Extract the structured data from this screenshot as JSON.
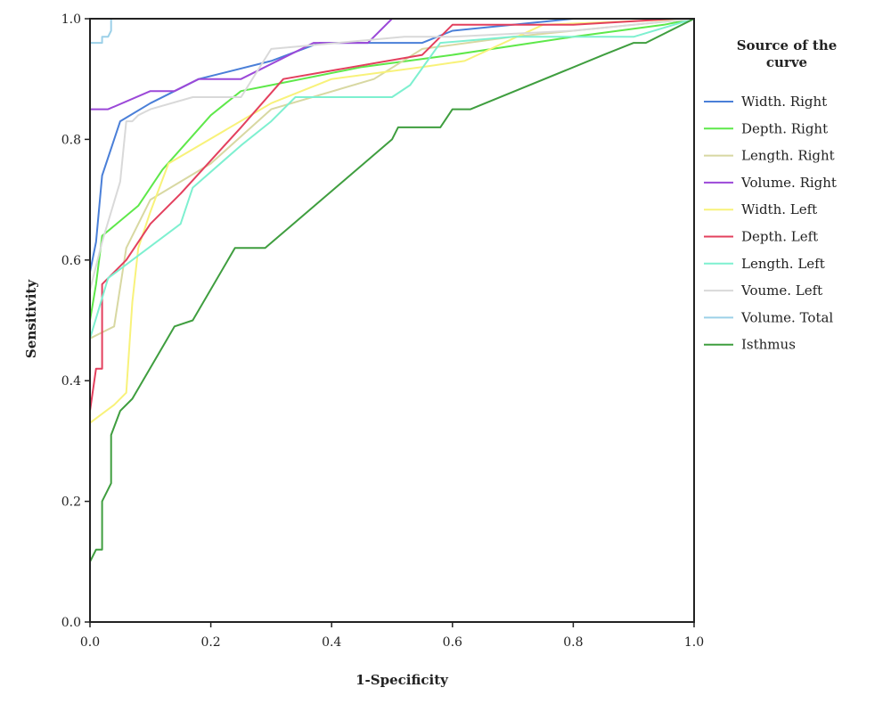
{
  "chart_data": {
    "type": "line",
    "title": "",
    "xlabel": "1-Specificity",
    "ylabel": "Sensitivity",
    "xlim": [
      0,
      1
    ],
    "ylim": [
      0,
      1
    ],
    "x_ticks": [
      "0.0",
      "0.2",
      "0.4",
      "0.6",
      "0.8",
      "1.0"
    ],
    "y_ticks": [
      "0.0",
      "0.2",
      "0.4",
      "0.6",
      "0.8",
      "1.0"
    ],
    "grid": false,
    "legend_title_lines": [
      "Source of the",
      "curve"
    ],
    "legend_position": "right",
    "series": [
      {
        "name": "Width. Right",
        "color": "#4a7fd8",
        "x": [
          0,
          0,
          0.01,
          0.02,
          0.05,
          0.1,
          0.18,
          0.3,
          0.38,
          0.55,
          0.6,
          0.8,
          1
        ],
        "y": [
          0,
          0.58,
          0.63,
          0.74,
          0.83,
          0.86,
          0.9,
          0.93,
          0.96,
          0.96,
          0.98,
          1.0,
          1
        ]
      },
      {
        "name": "Depth. Right",
        "color": "#5ee84a",
        "x": [
          0,
          0,
          0.01,
          0.02,
          0.08,
          0.12,
          0.2,
          0.25,
          0.3,
          0.45,
          0.6,
          0.8,
          0.95,
          1
        ],
        "y": [
          0,
          0.5,
          0.56,
          0.64,
          0.69,
          0.75,
          0.84,
          0.88,
          0.89,
          0.92,
          0.94,
          0.97,
          0.99,
          1
        ]
      },
      {
        "name": "Length. Right",
        "color": "#d8d8a2",
        "x": [
          0,
          0,
          0.02,
          0.04,
          0.06,
          0.1,
          0.2,
          0.3,
          0.47,
          0.55,
          0.7,
          0.8,
          1
        ],
        "y": [
          0,
          0.47,
          0.48,
          0.49,
          0.62,
          0.7,
          0.76,
          0.85,
          0.9,
          0.95,
          0.97,
          0.98,
          1
        ]
      },
      {
        "name": "Volume. Right",
        "color": "#9b48d8",
        "x": [
          0,
          0,
          0.03,
          0.1,
          0.14,
          0.18,
          0.25,
          0.37,
          0.46,
          0.5,
          0.52,
          0.7,
          1
        ],
        "y": [
          0,
          0.85,
          0.85,
          0.88,
          0.88,
          0.9,
          0.9,
          0.96,
          0.96,
          1.0,
          1.0,
          1.0,
          1
        ]
      },
      {
        "name": "Width. Left",
        "color": "#f8f27a",
        "x": [
          0,
          0,
          0.04,
          0.06,
          0.07,
          0.08,
          0.1,
          0.13,
          0.3,
          0.4,
          0.55,
          0.62,
          0.75,
          1
        ],
        "y": [
          0,
          0.33,
          0.36,
          0.38,
          0.53,
          0.62,
          0.68,
          0.76,
          0.86,
          0.9,
          0.92,
          0.93,
          0.99,
          1
        ]
      },
      {
        "name": "Depth. Left",
        "color": "#e3405e",
        "x": [
          0,
          0,
          0.01,
          0.02,
          0.02,
          0.06,
          0.1,
          0.15,
          0.25,
          0.32,
          0.55,
          0.6,
          0.8,
          0.97,
          1
        ],
        "y": [
          0,
          0.35,
          0.42,
          0.42,
          0.56,
          0.6,
          0.66,
          0.71,
          0.82,
          0.9,
          0.94,
          0.99,
          0.99,
          1.0,
          1
        ]
      },
      {
        "name": "Length. Left",
        "color": "#7ef0d0",
        "x": [
          0,
          0,
          0.03,
          0.15,
          0.17,
          0.25,
          0.3,
          0.34,
          0.5,
          0.53,
          0.58,
          0.7,
          0.9,
          1
        ],
        "y": [
          0,
          0.47,
          0.57,
          0.66,
          0.72,
          0.79,
          0.83,
          0.87,
          0.87,
          0.89,
          0.96,
          0.97,
          0.97,
          1
        ]
      },
      {
        "name": "Voume. Left",
        "color": "#d9d9d9",
        "x": [
          0,
          0,
          0.02,
          0.05,
          0.06,
          0.07,
          0.08,
          0.1,
          0.17,
          0.25,
          0.3,
          0.52,
          0.6,
          0.8,
          1
        ],
        "y": [
          0,
          0.55,
          0.63,
          0.73,
          0.83,
          0.83,
          0.84,
          0.85,
          0.87,
          0.87,
          0.95,
          0.97,
          0.97,
          0.98,
          1
        ]
      },
      {
        "name": "Volume. Total",
        "color": "#9cd0e8",
        "x": [
          0,
          0,
          0.02,
          0.02,
          0.03,
          0.035,
          0.035,
          0.1,
          0.5,
          1
        ],
        "y": [
          0,
          0.96,
          0.96,
          0.97,
          0.97,
          0.98,
          1.0,
          1.0,
          1.0,
          1
        ]
      },
      {
        "name": "Isthmus",
        "color": "#3f9e3f",
        "x": [
          0,
          0,
          0.01,
          0.02,
          0.02,
          0.035,
          0.035,
          0.05,
          0.07,
          0.14,
          0.17,
          0.24,
          0.29,
          0.5,
          0.51,
          0.58,
          0.6,
          0.63,
          0.85,
          0.9,
          0.92,
          1
        ],
        "y": [
          0,
          0.1,
          0.12,
          0.12,
          0.2,
          0.23,
          0.31,
          0.35,
          0.37,
          0.49,
          0.5,
          0.62,
          0.62,
          0.8,
          0.82,
          0.82,
          0.85,
          0.85,
          0.94,
          0.96,
          0.96,
          1
        ]
      }
    ]
  }
}
